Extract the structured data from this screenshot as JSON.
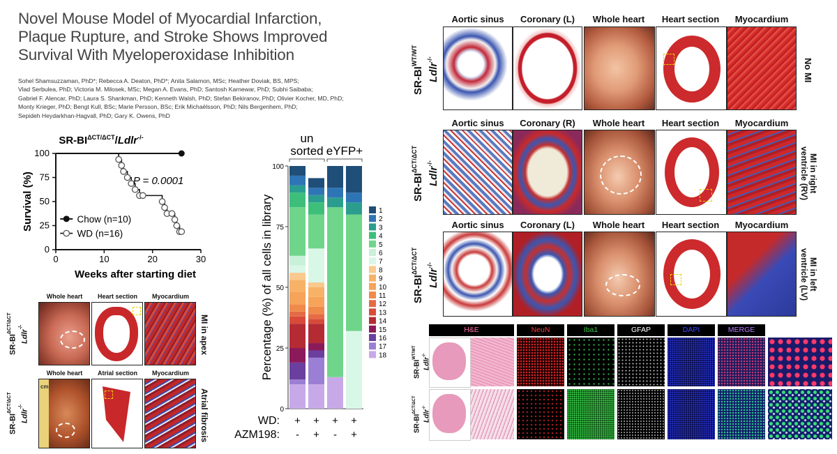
{
  "paper": {
    "title": "Novel Mouse Model of Myocardial Infarction, Plaque Rupture, and Stroke Shows Improved Survival With Myeloperoxidase Inhibition",
    "title_lines": [
      "Novel Mouse Model of Myocardial Infarction,",
      "Plaque Rupture, and Stroke Shows Improved",
      "Survival With Myeloperoxidase Inhibition"
    ],
    "author_lines": [
      "Sohel Shamsuzzaman, PhD*; Rebecca A. Deaton, PhD*; Anita Salamon, MSc; Heather Doviak, BS, MPS;",
      "Vlad Serbulea, PhD; Victoria M. Milosek, MSc; Megan A. Evans, PhD; Santosh Karnewar, PhD; Subhi Saibaba;",
      "Gabriel F. Alencar, PhD; Laura S. Shankman, PhD; Kenneth Walsh, PhD; Stefan Bekiranov, PhD; Olivier Kocher, MD, PhD;",
      "Monty Krieger, PhD; Bengt Kull, BSc; Marie Persson, BSc; Erik Michaëlsson, PhD; Nils Bergenhem, PhD;",
      "Sepideh Heydarkhan-Hagvall, PhD; Gary K. Owens, PhD"
    ]
  },
  "survival": {
    "title_prefix": "SR-BI",
    "title_sup": "ΔCT/ΔCT",
    "title_slash": "/",
    "title_gene": "Ldlr",
    "title_gene_sup": "-/-",
    "p_value": "P = 0.0001",
    "legend": [
      "Chow (n=10)",
      "WD (n=16)"
    ]
  },
  "chart_data": [
    {
      "type": "line",
      "title": "SR-BI ΔCT/ΔCT / Ldlr -/-",
      "xlabel": "Weeks after starting diet",
      "ylabel": "Survival (%)",
      "xlim": [
        0,
        30
      ],
      "ylim": [
        0,
        100
      ],
      "xticks": [
        "0",
        "10",
        "20",
        "30"
      ],
      "yticks": [
        "0",
        "25",
        "50",
        "75",
        "100"
      ],
      "series": [
        {
          "name": "Chow (n=10)",
          "x": [
            0,
            26
          ],
          "y": [
            100,
            100
          ]
        },
        {
          "name": "WD (n=16)",
          "x": [
            0,
            12.2,
            13,
            13.6,
            14,
            14.8,
            15.6,
            16.4,
            17.3,
            18,
            22,
            22.5,
            23,
            24,
            24.6,
            25,
            25.6,
            26
          ],
          "y": [
            100,
            100,
            93.75,
            87.5,
            81.25,
            75,
            68.75,
            62.5,
            56.25,
            56.25,
            50,
            43.75,
            37.5,
            37.5,
            31.25,
            25,
            18.75,
            18.75
          ]
        }
      ],
      "p_value": 0.0001
    },
    {
      "type": "bar",
      "stacked": true,
      "ylabel": "Percentage (%) of all cells in library",
      "ylim": [
        0,
        100
      ],
      "yticks": [
        "0",
        "25",
        "50",
        "75",
        "100"
      ],
      "group_labels": [
        "un sorted",
        "eYFP+"
      ],
      "row_labels": [
        "WD:",
        "AZM198:"
      ],
      "categories": [
        "+/-",
        "+/+",
        "+/-",
        "+/+"
      ],
      "row_wd": [
        "+",
        "+",
        "+",
        "+"
      ],
      "row_azm": [
        "-",
        "+",
        "-",
        "+"
      ],
      "legend": [
        "1",
        "2",
        "3",
        "4",
        "5",
        "6",
        "7",
        "8",
        "9",
        "10",
        "11",
        "12",
        "13",
        "14",
        "15",
        "16",
        "17",
        "18"
      ],
      "colors": [
        "#1f4e79",
        "#2e75b6",
        "#2a9d8f",
        "#3dbf7a",
        "#6fd58a",
        "#c9f0d8",
        "#d9f7e6",
        "#f9c98d",
        "#f7b267",
        "#f5a45a",
        "#f08a4b",
        "#e56b45",
        "#d94a3a",
        "#b52b34",
        "#8b1a5a",
        "#6b3fa0",
        "#9b7fd4",
        "#c8a9e8"
      ],
      "series": [
        {
          "name": "1",
          "values": [
            4,
            4,
            9,
            11
          ]
        },
        {
          "name": "2",
          "values": [
            4,
            3,
            4,
            4
          ]
        },
        {
          "name": "3",
          "values": [
            3,
            3,
            4,
            5
          ]
        },
        {
          "name": "4",
          "values": [
            6,
            5,
            0,
            0
          ]
        },
        {
          "name": "5",
          "values": [
            20,
            14,
            70,
            48
          ]
        },
        {
          "name": "6",
          "values": [
            4,
            0,
            0,
            0
          ]
        },
        {
          "name": "7",
          "values": [
            3,
            14,
            0,
            32
          ]
        },
        {
          "name": "8",
          "values": [
            3,
            2,
            0,
            0
          ]
        },
        {
          "name": "9",
          "values": [
            5,
            4,
            0,
            0
          ]
        },
        {
          "name": "10",
          "values": [
            5,
            4,
            0,
            0
          ]
        },
        {
          "name": "11",
          "values": [
            3,
            3,
            0,
            0
          ]
        },
        {
          "name": "12",
          "values": [
            2,
            2,
            0,
            0
          ]
        },
        {
          "name": "13",
          "values": [
            3,
            2,
            0,
            0
          ]
        },
        {
          "name": "14",
          "values": [
            10,
            8,
            0,
            0
          ]
        },
        {
          "name": "15",
          "values": [
            6,
            3,
            0,
            0
          ]
        },
        {
          "name": "16",
          "values": [
            7,
            3,
            0,
            0
          ]
        },
        {
          "name": "17",
          "values": [
            2,
            11,
            0,
            0
          ]
        },
        {
          "name": "18",
          "values": [
            10,
            10,
            13,
            0
          ]
        }
      ]
    }
  ],
  "mi_panel": {
    "headers": [
      "Whole heart",
      "Heart section",
      "Myocardium"
    ],
    "headers2": [
      "Whole heart",
      "Atrial section",
      "Myocardium"
    ],
    "genotype": "SR-BI",
    "genotype_sup": "ΔCT/ΔCT",
    "gene": "Ldlr",
    "gene_sup": "-/-",
    "row1_right": "MI in apex",
    "row2_right": "Atrial fibrosis",
    "ruler_text": "cm"
  },
  "histology": {
    "headers": [
      "Aortic sinus",
      "Coronary (L)",
      "Whole heart",
      "Heart section",
      "Myocardium"
    ],
    "headers_row2": [
      "Aortic sinus",
      "Coronary (R)",
      "Whole heart",
      "Heart section",
      "Myocardium"
    ],
    "headers_row3": [
      "Aortic sinus",
      "Coronary (L)",
      "Whole heart",
      "Heart section",
      "Myocardium"
    ],
    "genotype_wt": "SR-BI",
    "genotype_wt_sup": "WT/WT",
    "genotype_ct": "SR-BI",
    "genotype_ct_sup": "ΔCT/ΔCT",
    "gene": "Ldlr",
    "gene_sup": "-/-",
    "row1_right": "No MI",
    "row2_right": [
      "MI in right",
      "ventricle (RV)"
    ],
    "row3_right": [
      "MI in left",
      "ventricle (LV)"
    ]
  },
  "brain": {
    "headers": [
      "H&E",
      "NeuN",
      "Iba1",
      "GFAP",
      "DAPI",
      "MERGE"
    ],
    "header_colors": [
      "#ff6fa8",
      "#ff3b3b",
      "#39c84a",
      "#ffffff",
      "#3d4bff",
      "#b77cff"
    ],
    "genotype_wt": "SR-BI",
    "genotype_wt_sup": "WT/WT",
    "genotype_ct": "SR-BI",
    "genotype_ct_sup": "ΔCT/ΔCT",
    "gene": "Ldlr",
    "gene_sup": "-/-"
  }
}
